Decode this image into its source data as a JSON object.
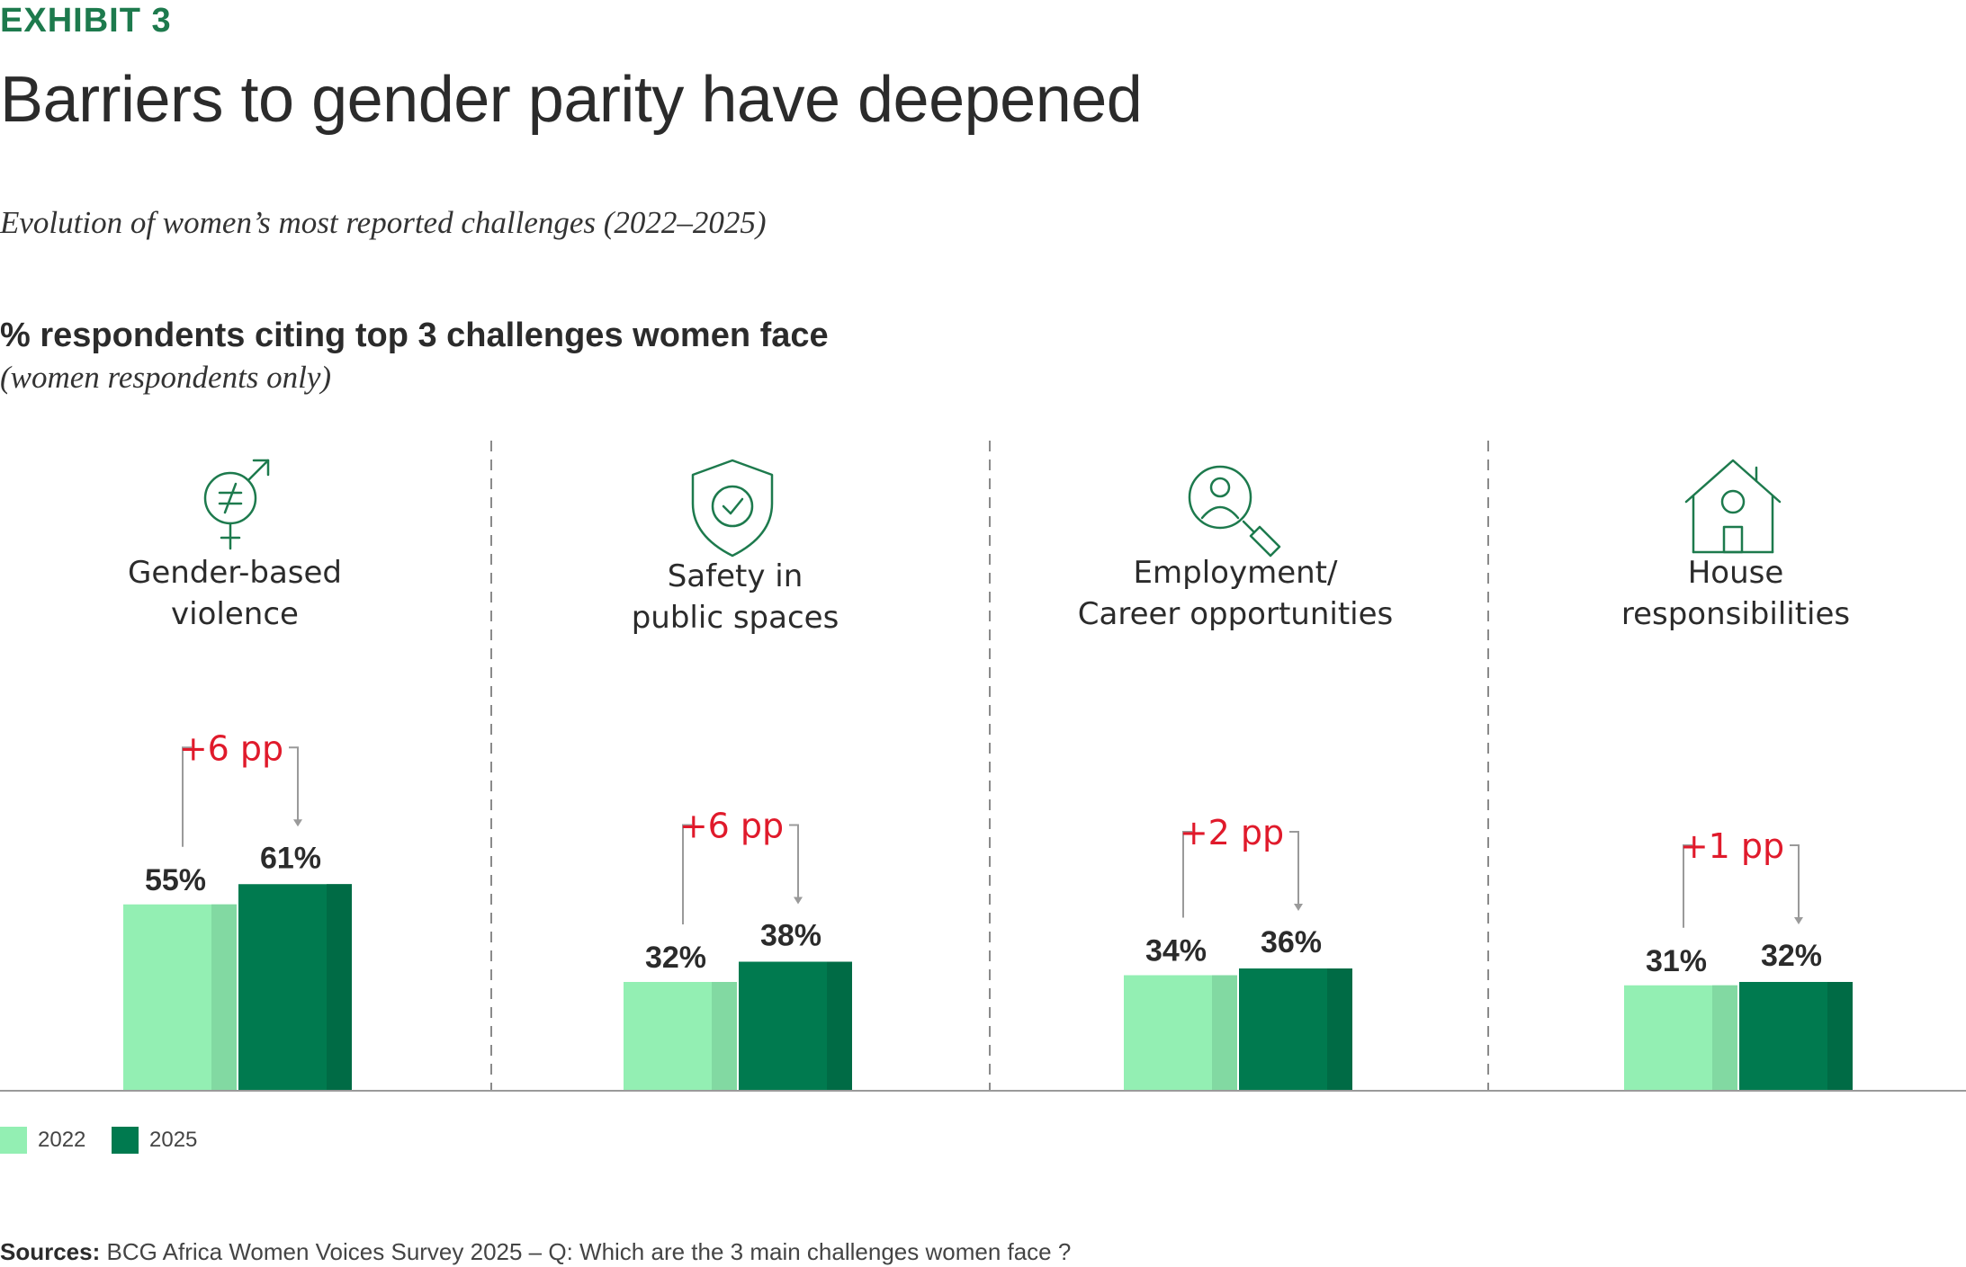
{
  "header": {
    "exhibit": "EXHIBIT 3",
    "title": "Barriers to gender parity have deepened",
    "subtitle": "Evolution of women’s most reported challenges (2022–2025)"
  },
  "metric": {
    "label": "% respondents citing top 3 challenges women face",
    "sublabel": "(women respondents only)"
  },
  "colors": {
    "2022": "#93efb3",
    "2022_shade": "#82d9a2",
    "2025": "#007a4f",
    "2025_shade": "#006b45",
    "delta": "#e01a2b",
    "icon": "#1d7a4d"
  },
  "chart_data": {
    "type": "bar",
    "categories": [
      "Gender-based violence",
      "Safety in public spaces",
      "Employment/ Career opportunities",
      "House responsibilities"
    ],
    "category_lines": [
      [
        "Gender-based",
        "violence"
      ],
      [
        "Safety in",
        "public spaces"
      ],
      [
        "Employment/",
        "Career opportunities"
      ],
      [
        "House",
        "responsibilities"
      ]
    ],
    "icons": [
      "gender-symbol-icon",
      "shield-check-icon",
      "person-search-icon",
      "house-icon"
    ],
    "series": [
      {
        "name": "2022",
        "values": [
          55,
          32,
          34,
          31
        ],
        "labels": [
          "55%",
          "32%",
          "34%",
          "31%"
        ]
      },
      {
        "name": "2025",
        "values": [
          61,
          38,
          36,
          32
        ],
        "labels": [
          "61%",
          "38%",
          "36%",
          "32%"
        ]
      }
    ],
    "deltas": [
      "+6 pp",
      "+6 pp",
      "+2 pp",
      "+1 pp"
    ],
    "ylim": [
      0,
      100
    ]
  },
  "legend": {
    "items": [
      "2022",
      "2025"
    ]
  },
  "sources": {
    "label": "Sources:",
    "text": "BCG Africa Women Voices Survey 2025 – Q: Which are the 3 main challenges women face ?"
  }
}
